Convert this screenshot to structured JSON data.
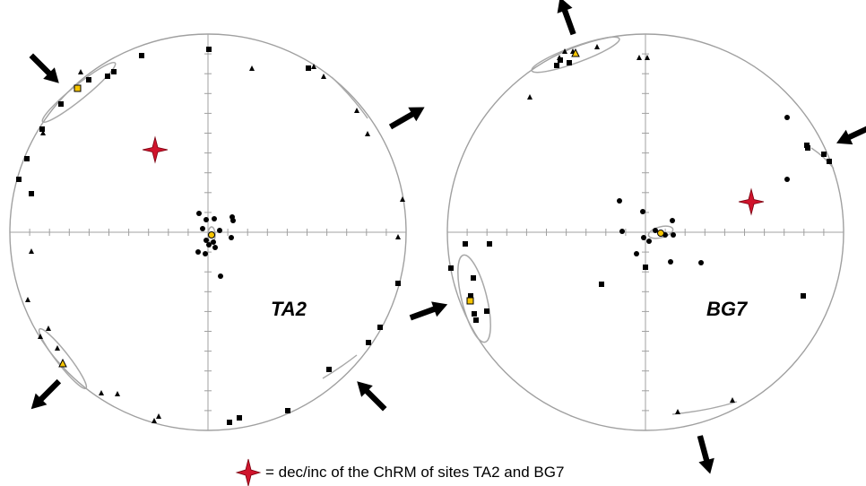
{
  "legend": {
    "text": "= dec/inc of the ChRM of sites TA2 and BG7",
    "symbol": "red-four-point-star"
  },
  "colors": {
    "primitive": "#a0a0a0",
    "symbol": "#000000",
    "mean": "#f5c400",
    "chrm_star": "#d0142c",
    "ellipse": "#a8a8a8"
  },
  "stereonets": [
    {
      "site": "TA2",
      "arrow_directions_deg": [
        315,
        60,
        225,
        135
      ],
      "chrm": {
        "dec": 306,
        "inc": 45
      }
    },
    {
      "site": "BG7",
      "arrow_directions_deg": [
        340,
        65,
        250,
        165
      ],
      "chrm": {
        "dec": 72,
        "inc": 40
      }
    }
  ]
}
